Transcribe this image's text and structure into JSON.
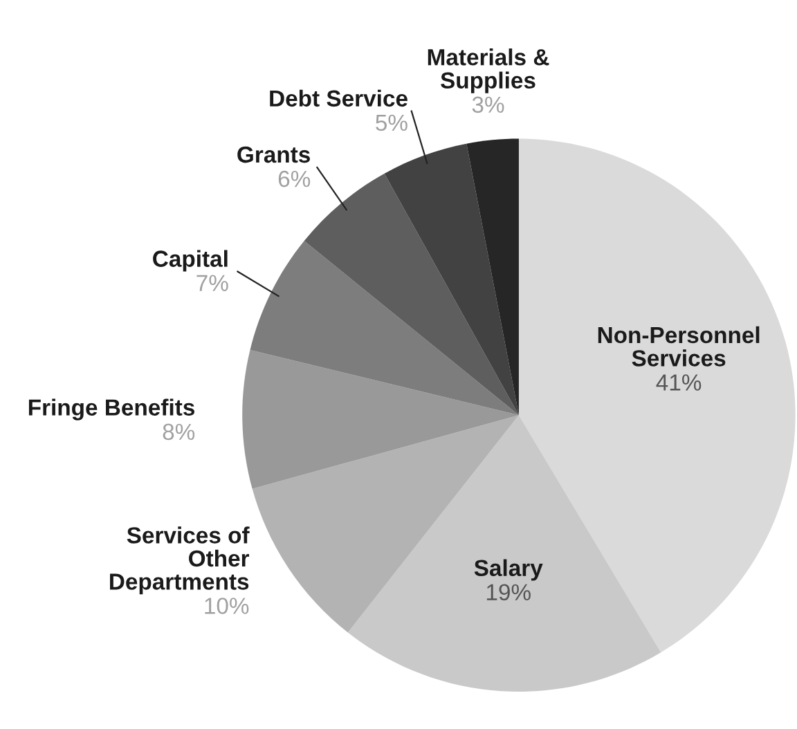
{
  "chart_data": {
    "type": "pie",
    "categories": [
      "Non-Personnel\nServices",
      "Salary",
      "Services of\nOther\nDepartments",
      "Fringe Benefits",
      "Capital",
      "Grants",
      "Debt Service",
      "Materials &\nSupplies"
    ],
    "values": [
      41,
      19,
      10,
      8,
      7,
      6,
      5,
      3
    ],
    "colors": [
      "#dadada",
      "#c9c9c9",
      "#b3b3b3",
      "#999999",
      "#7d7d7d",
      "#5e5e5e",
      "#424242",
      "#262626"
    ],
    "value_labels": [
      "41%",
      "19%",
      "10%",
      "8%",
      "7%",
      "6%",
      "5%",
      "3%"
    ]
  }
}
